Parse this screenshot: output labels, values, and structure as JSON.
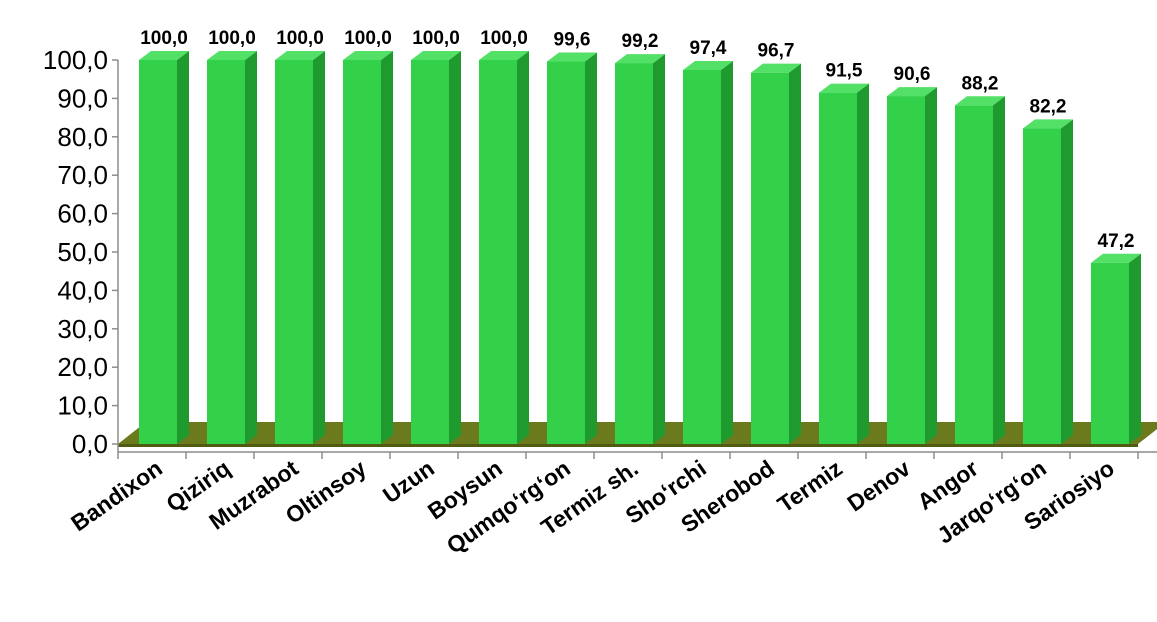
{
  "chart_data": {
    "type": "bar",
    "title": "",
    "xlabel": "",
    "ylabel": "",
    "categories": [
      "Bandixon",
      "Qiziriq",
      "Muzrabot",
      "Oltinsoy",
      "Uzun",
      "Boysun",
      "Qumqo‘rg‘on",
      "Termiz sh.",
      "Sho‘rchi",
      "Sherobod",
      "Termiz",
      "Denov",
      "Angor",
      "Jarqo‘rg‘on",
      "Sariosiyo"
    ],
    "values": [
      100.0,
      100.0,
      100.0,
      100.0,
      100.0,
      100.0,
      99.6,
      99.2,
      97.4,
      96.7,
      91.5,
      90.6,
      88.2,
      82.2,
      47.2
    ],
    "data_labels": [
      "100,0",
      "100,0",
      "100,0",
      "100,0",
      "100,0",
      "100,0",
      "99,6",
      "99,2",
      "97,4",
      "96,7",
      "91,5",
      "90,6",
      "88,2",
      "82,2",
      "47,2"
    ],
    "y_ticks": [
      "0,0",
      "10,0",
      "20,0",
      "30,0",
      "40,0",
      "50,0",
      "60,0",
      "70,0",
      "80,0",
      "90,0",
      "100,0"
    ],
    "ylim": [
      0,
      100
    ],
    "grid": false,
    "legend": "none",
    "bar_colors": {
      "front": "#33d14a",
      "side": "#1f9a2e",
      "top": "#52e066"
    },
    "floor_colors": {
      "top": "#6b7a1c",
      "front": "#4f5c12"
    }
  }
}
